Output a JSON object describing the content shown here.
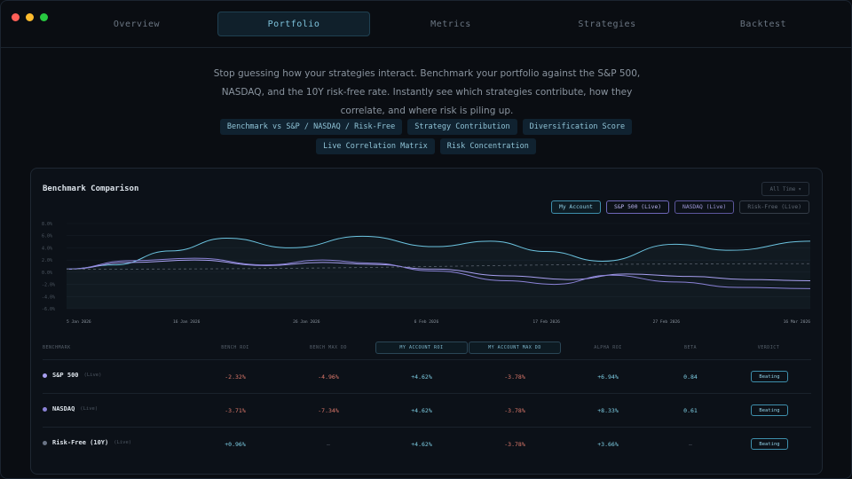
{
  "nav": {
    "tabs": [
      {
        "label": "Overview",
        "active": false
      },
      {
        "label": "Portfolio",
        "active": true
      },
      {
        "label": "Metrics",
        "active": false
      },
      {
        "label": "Strategies",
        "active": false
      },
      {
        "label": "Backtest",
        "active": false
      }
    ]
  },
  "intro": {
    "text": "Stop guessing how your strategies interact. Benchmark your portfolio against the S&P 500, NASDAQ, and the 10Y risk-free rate. Instantly see which strategies contribute, how they correlate, and where risk is piling up."
  },
  "features": {
    "row1": [
      "Benchmark vs S&P / NASDAQ / Risk-Free",
      "Strategy Contribution",
      "Diversification Score"
    ],
    "row2": [
      "Live Correlation Matrix",
      "Risk Concentration"
    ]
  },
  "card": {
    "title": "Benchmark Comparison",
    "range_label": "All Time",
    "legend": [
      "My Account",
      "S&P 500 (Live)",
      "NASDAQ (Live)",
      "Risk-Free (Live)"
    ]
  },
  "colors": {
    "account": "#6cc4e0",
    "sp500": "#a79ff0",
    "nasdaq": "#8a82d6",
    "riskfree": "#59626e",
    "negative": "#e07a6c",
    "positive": "#7fd0e6"
  },
  "chart_data": {
    "type": "line",
    "title": "",
    "xlabel": "",
    "ylabel": "",
    "ylim": [
      -6,
      8
    ],
    "y_ticks": [
      "8.0%",
      "6.0%",
      "4.0%",
      "2.0%",
      "0.0%",
      "-2.0%",
      "-4.0%",
      "-6.0%"
    ],
    "x_ticks": [
      "5 Jan 2026",
      "16 Jan 2026",
      "26 Jan 2026",
      "6 Feb 2026",
      "17 Feb 2026",
      "27 Feb 2026",
      "16 Mar 2026"
    ],
    "x_tick_pos": [
      0,
      1.5,
      3,
      4.5,
      6,
      7.5,
      9.3
    ],
    "grid": true,
    "series": [
      {
        "name": "My Account",
        "x": [
          0,
          0.6,
          1.3,
          2.0,
          2.8,
          3.7,
          4.6,
          5.3,
          6.0,
          6.7,
          7.6,
          8.3,
          9.3
        ],
        "y": [
          0.5,
          1.2,
          3.5,
          5.6,
          4.0,
          5.9,
          4.2,
          5.1,
          3.4,
          1.8,
          4.6,
          3.6,
          5.1
        ]
      },
      {
        "name": "S&P 500",
        "x": [
          0,
          0.8,
          1.6,
          2.5,
          3.2,
          3.8,
          4.6,
          5.5,
          6.3,
          7.0,
          7.8,
          8.5,
          9.3
        ],
        "y": [
          0.5,
          1.6,
          2.0,
          1.1,
          1.6,
          1.3,
          0.5,
          -0.6,
          -1.2,
          -0.3,
          -0.7,
          -1.2,
          -1.4
        ]
      },
      {
        "name": "NASDAQ",
        "x": [
          0,
          0.8,
          1.6,
          2.5,
          3.2,
          3.8,
          4.6,
          5.5,
          6.1,
          6.8,
          7.6,
          8.4,
          9.3
        ],
        "y": [
          0.5,
          1.9,
          2.3,
          1.2,
          2.0,
          1.5,
          0.2,
          -1.4,
          -2.0,
          -0.5,
          -1.6,
          -2.5,
          -2.7
        ]
      },
      {
        "name": "Risk-Free",
        "x": [
          0,
          9.3
        ],
        "y": [
          0.5,
          1.4
        ]
      }
    ]
  },
  "table": {
    "headers": [
      "BENCHMARK",
      "BENCH ROI",
      "BENCH MAX DD",
      "MY ACCOUNT ROI",
      "MY ACCOUNT MAX DD",
      "ALPHA ROI",
      "BETA",
      "VERDICT"
    ],
    "rows": [
      {
        "name": "S&P 500",
        "tag": "(Live)",
        "dot": "#a79ff0",
        "bench_roi": "-2.32%",
        "bench_dd": "-4.96%",
        "acct_roi": "+4.62%",
        "acct_dd": "-3.78%",
        "alpha": "+6.94%",
        "beta": "0.84",
        "verdict": "Beating"
      },
      {
        "name": "NASDAQ",
        "tag": "(Live)",
        "dot": "#8a82d6",
        "bench_roi": "-3.71%",
        "bench_dd": "-7.34%",
        "acct_roi": "+4.62%",
        "acct_dd": "-3.78%",
        "alpha": "+8.33%",
        "beta": "0.61",
        "verdict": "Beating"
      },
      {
        "name": "Risk-Free (10Y)",
        "tag": "(Live)",
        "dot": "#6a7486",
        "bench_roi": "+0.96%",
        "bench_dd": "—",
        "acct_roi": "+4.62%",
        "acct_dd": "-3.78%",
        "alpha": "+3.66%",
        "beta": "—",
        "verdict": "Beating"
      }
    ]
  }
}
